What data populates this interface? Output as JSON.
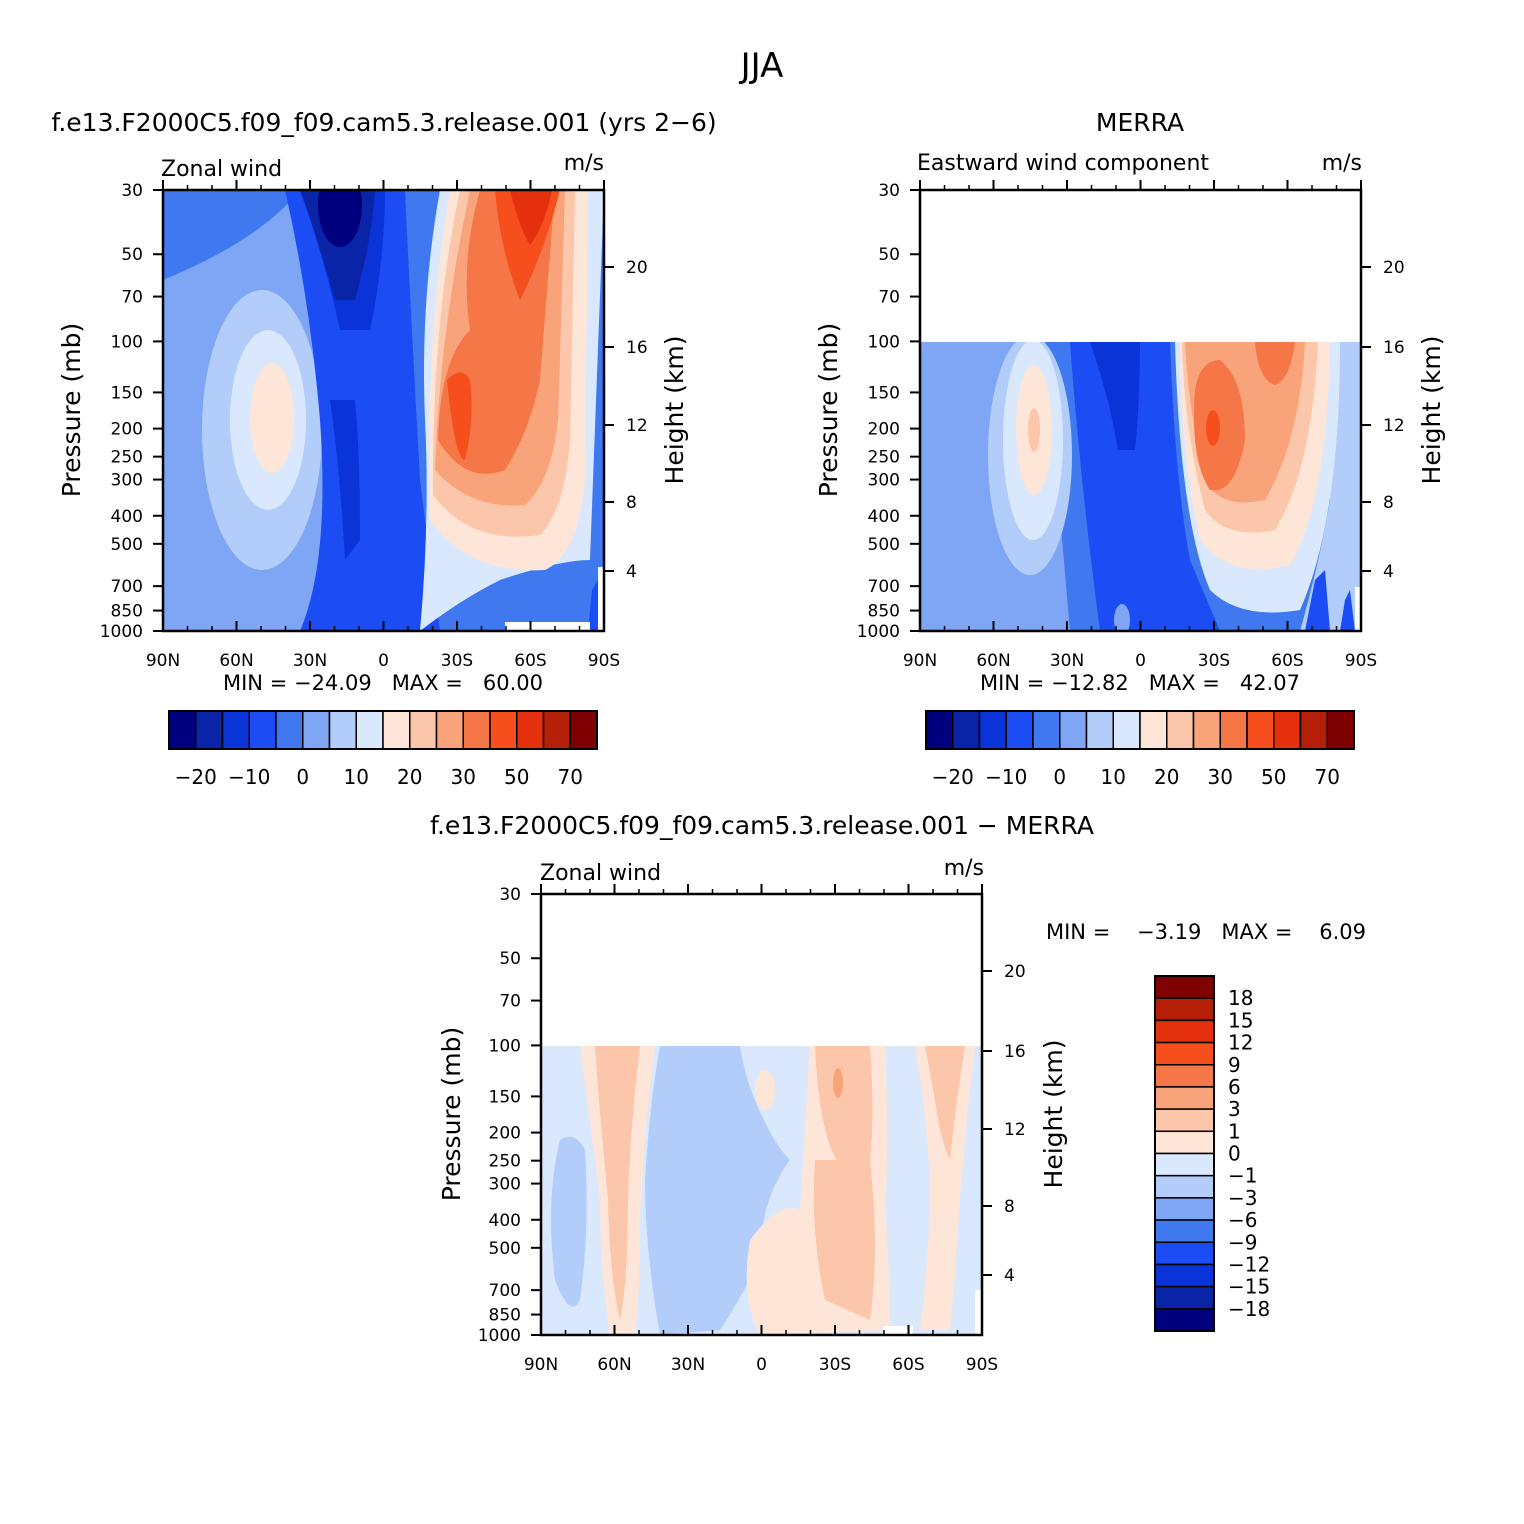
{
  "page": {
    "season_title": "JJA"
  },
  "colors": {
    "contour_palette": [
      "#00007f",
      "#0a24a8",
      "#0a34d8",
      "#1c4cf4",
      "#3f78ef",
      "#7fa6f5",
      "#b3cdfb",
      "#d9e8fc",
      "#fde6d8",
      "#fcc6aa",
      "#f9a37b",
      "#f57647",
      "#f64f1d",
      "#e4300c",
      "#b51e07",
      "#7e0000"
    ],
    "axis": "#000000",
    "background": "#ffffff"
  },
  "panels": {
    "model": {
      "header": "f.e13.F2000C5.f09_f09.cam5.3.release.001 (yrs 2−6)",
      "variable_label": "Zonal wind",
      "units_label": "m/s",
      "min_max_label": "MIN = −24.09   MAX =   60.00"
    },
    "merra": {
      "header": "MERRA",
      "variable_label": "Eastward wind component",
      "units_label": "m/s",
      "min_max_label": "MIN = −12.82   MAX =   42.07"
    },
    "diff": {
      "header": "f.e13.F2000C5.f09_f09.cam5.3.release.001 − MERRA",
      "variable_label": "Zonal wind",
      "units_label": "m/s",
      "min_max_label": "MIN =    −3.19   MAX =    6.09"
    }
  },
  "axes": {
    "y_left_label": "Pressure (mb)",
    "y_right_label": "Height (km)",
    "pressure_ticks": [
      "30",
      "50",
      "70",
      "100",
      "150",
      "200",
      "250",
      "300",
      "400",
      "500",
      "700",
      "850",
      "1000"
    ],
    "height_ticks": [
      "20",
      "16",
      "12",
      "8",
      "4"
    ],
    "lat_ticks": [
      "90N",
      "60N",
      "30N",
      "0",
      "30S",
      "60S",
      "90S"
    ]
  },
  "colorbars": {
    "main": {
      "labels": [
        "−20",
        "−10",
        "0",
        "10",
        "20",
        "30",
        "50",
        "70"
      ]
    },
    "diff": {
      "labels": [
        "18",
        "15",
        "12",
        "9",
        "6",
        "3",
        "1",
        "0",
        "−1",
        "−3",
        "−6",
        "−9",
        "−12",
        "−15",
        "−18"
      ]
    }
  },
  "chart_data": [
    {
      "type": "heatmap",
      "title": "f.e13.F2000C5.f09_f09.cam5.3.release.001 (yrs 2−6)",
      "subtitle": "Zonal wind",
      "units": "m/s",
      "xlabel": "",
      "ylabel": "Pressure (mb)",
      "y2label": "Height (km)",
      "x_range": [
        "90N",
        "90S"
      ],
      "y_range_mb": [
        30,
        1000
      ],
      "y_scale": "log",
      "min": -24.09,
      "max": 60.0,
      "contour_levels": [
        -20,
        -15,
        -10,
        -5,
        0,
        5,
        10,
        15,
        20,
        25,
        30,
        40,
        50,
        60,
        70
      ]
    },
    {
      "type": "heatmap",
      "title": "MERRA",
      "subtitle": "Eastward wind component",
      "units": "m/s",
      "xlabel": "",
      "ylabel": "Pressure (mb)",
      "y2label": "Height (km)",
      "x_range": [
        "90N",
        "90S"
      ],
      "y_range_mb": [
        30,
        1000
      ],
      "data_top_mb": 100,
      "y_scale": "log",
      "min": -12.82,
      "max": 42.07,
      "contour_levels": [
        -20,
        -15,
        -10,
        -5,
        0,
        5,
        10,
        15,
        20,
        25,
        30,
        40,
        50,
        60,
        70
      ]
    },
    {
      "type": "heatmap",
      "title": "f.e13.F2000C5.f09_f09.cam5.3.release.001 − MERRA",
      "subtitle": "Zonal wind",
      "units": "m/s",
      "xlabel": "",
      "ylabel": "Pressure (mb)",
      "y2label": "Height (km)",
      "x_range": [
        "90N",
        "90S"
      ],
      "y_range_mb": [
        30,
        1000
      ],
      "data_top_mb": 100,
      "y_scale": "log",
      "min": -3.19,
      "max": 6.09,
      "contour_levels": [
        -18,
        -15,
        -12,
        -9,
        -6,
        -3,
        -1,
        0,
        1,
        3,
        6,
        9,
        12,
        15,
        18
      ]
    }
  ]
}
